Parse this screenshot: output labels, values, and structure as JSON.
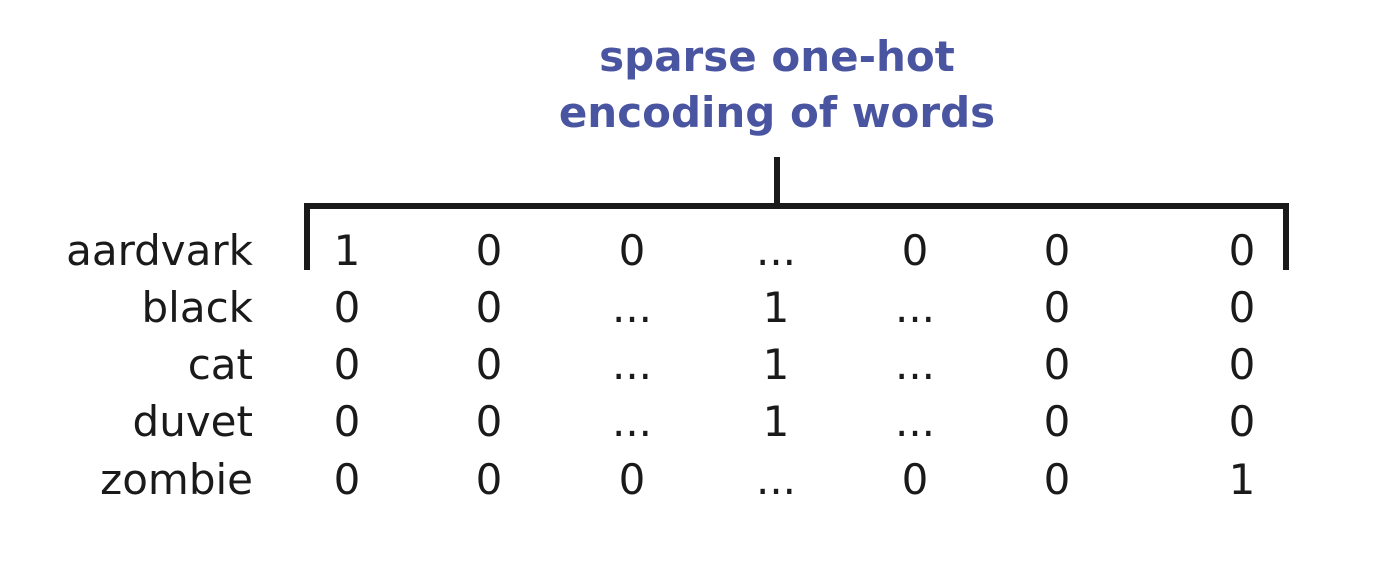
{
  "title": {
    "line1": "sparse one-hot",
    "line2": "encoding of words"
  },
  "colors": {
    "title": "#4a55a2",
    "text": "#1a1a1a",
    "bracket": "#1a1a1a"
  },
  "rows": [
    {
      "word": "aardvark",
      "cells": [
        "1",
        "0",
        "0",
        "...",
        "0",
        "0",
        "0"
      ]
    },
    {
      "word": "black",
      "cells": [
        "0",
        "0",
        "...",
        "1",
        "...",
        "0",
        "0"
      ]
    },
    {
      "word": "cat",
      "cells": [
        "0",
        "0",
        "...",
        "1",
        "...",
        "0",
        "0"
      ]
    },
    {
      "word": "duvet",
      "cells": [
        "0",
        "0",
        "...",
        "1",
        "...",
        "0",
        "0"
      ]
    },
    {
      "word": "zombie",
      "cells": [
        "0",
        "0",
        "0",
        "...",
        "0",
        "0",
        "1"
      ]
    }
  ]
}
